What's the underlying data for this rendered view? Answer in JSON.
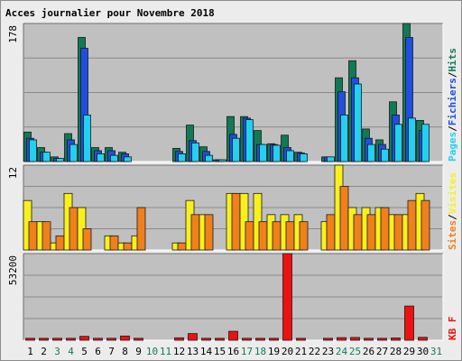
{
  "chart_data": {
    "type": "bar",
    "title": "Acces journalier pour Novembre 2018",
    "categories": [
      "1",
      "2",
      "3",
      "4",
      "5",
      "6",
      "7",
      "8",
      "9",
      "10",
      "11",
      "12",
      "13",
      "14",
      "15",
      "16",
      "17",
      "18",
      "19",
      "20",
      "21",
      "22",
      "23",
      "24",
      "25",
      "26",
      "27",
      "28",
      "29",
      "30",
      "31"
    ],
    "weekend_days": [
      "3",
      "4",
      "10",
      "11",
      "17",
      "18",
      "24",
      "25",
      "31"
    ],
    "colors": {
      "hits": "#117a55",
      "files": "#1f4ee0",
      "pages": "#22d0f0",
      "visits": "#f8f01c",
      "sites": "#f0801c",
      "kbytes": "#ee1111",
      "plot_bg": "#c0c0c0",
      "title": "#0000c0",
      "weekday_label": "#000000",
      "weekend_label": "#117a55"
    },
    "panels": [
      {
        "id": "hits",
        "ymax_label": "178",
        "ymax": 178,
        "legend": [
          {
            "label": "Pages",
            "color": "#22d0f0"
          },
          {
            "label": "/",
            "color": "#000000"
          },
          {
            "label": "Fichiers",
            "color": "#1f4ee0"
          },
          {
            "label": "/",
            "color": "#000000"
          },
          {
            "label": "Hits",
            "color": "#117a55"
          }
        ],
        "series": [
          {
            "name": "Hits",
            "color": "#117a55",
            "values": [
              38,
              18,
              6,
              36,
              160,
              18,
              18,
              12,
              0,
              0,
              0,
              17,
              47,
              19,
              2,
              58,
              58,
              40,
              23,
              34,
              12,
              0,
              6,
              108,
              130,
              42,
              28,
              77,
              178,
              53,
              0
            ]
          },
          {
            "name": "Fichiers",
            "color": "#1f4ee0",
            "values": [
              30,
              12,
              4,
              28,
              146,
              14,
              14,
              10,
              0,
              0,
              0,
              13,
              27,
              13,
              2,
              35,
              56,
              22,
              22,
              18,
              11,
              0,
              6,
              90,
              108,
              30,
              22,
              60,
              160,
              40,
              0
            ]
          },
          {
            "name": "Pages",
            "color": "#22d0f0",
            "values": [
              28,
              12,
              4,
              22,
              60,
              10,
              8,
              6,
              0,
              0,
              0,
              10,
              24,
              8,
              2,
              30,
              54,
              22,
              21,
              14,
              10,
              0,
              6,
              60,
              100,
              22,
              16,
              48,
              56,
              48,
              0
            ]
          }
        ]
      },
      {
        "id": "visits",
        "ymax_label": "12",
        "ymax": 12,
        "legend": [
          {
            "label": "Sites",
            "color": "#f0801c"
          },
          {
            "label": "/",
            "color": "#000000"
          },
          {
            "label": "Visites",
            "color": "#f8f01c"
          }
        ],
        "series": [
          {
            "name": "Visites",
            "color": "#f8f01c",
            "values": [
              7,
              4,
              1,
              8,
              6,
              0,
              2,
              1,
              2,
              0,
              0,
              1,
              7,
              5,
              0,
              8,
              8,
              8,
              5,
              5,
              5,
              0,
              4,
              12,
              6,
              6,
              6,
              5,
              5,
              8,
              0
            ]
          },
          {
            "name": "Sites",
            "color": "#f0801c",
            "values": [
              4,
              4,
              2,
              6,
              3,
              0,
              2,
              1,
              6,
              0,
              0,
              1,
              5,
              5,
              0,
              8,
              4,
              4,
              4,
              4,
              4,
              0,
              5,
              9,
              5,
              5,
              6,
              5,
              7,
              7,
              0
            ]
          }
        ]
      },
      {
        "id": "kbytes",
        "ymax_label": "53200",
        "ymax": 53200,
        "legend": [
          {
            "label": "KB F",
            "color": "#ee1111"
          }
        ],
        "series": [
          {
            "name": "KB F",
            "color": "#ee1111",
            "values": [
              1200,
              1200,
              1200,
              1200,
              2400,
              1200,
              1200,
              2600,
              1200,
              0,
              0,
              1500,
              4100,
              1200,
              1200,
              5500,
              1200,
              1200,
              1200,
              53200,
              1200,
              0,
              1200,
              1600,
              1700,
              1200,
              1200,
              1400,
              21000,
              1800,
              0
            ]
          }
        ]
      }
    ]
  }
}
